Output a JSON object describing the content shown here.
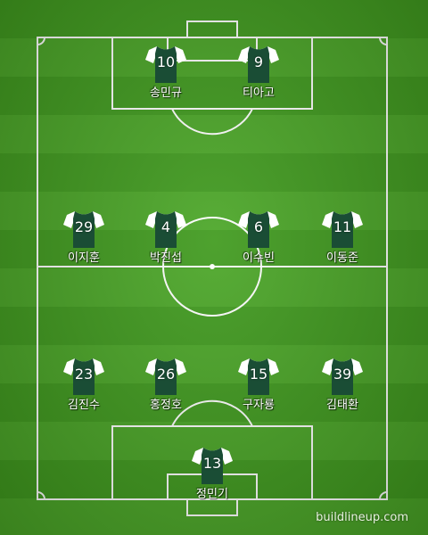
{
  "colors": {
    "shirt_body": "#1a4d35",
    "shirt_sleeves": "#ffffff",
    "lines": "#ffffff"
  },
  "players": [
    {
      "number": "10",
      "name": "송민규"
    },
    {
      "number": "9",
      "name": "티아고"
    },
    {
      "number": "29",
      "name": "이지훈"
    },
    {
      "number": "4",
      "name": "박진섭"
    },
    {
      "number": "6",
      "name": "이수빈"
    },
    {
      "number": "11",
      "name": "이동준"
    },
    {
      "number": "23",
      "name": "김진수"
    },
    {
      "number": "26",
      "name": "홍정호"
    },
    {
      "number": "15",
      "name": "구자룡"
    },
    {
      "number": "39",
      "name": "김태환"
    },
    {
      "number": "13",
      "name": "정민기"
    }
  ],
  "watermark": "buildlineup.com"
}
